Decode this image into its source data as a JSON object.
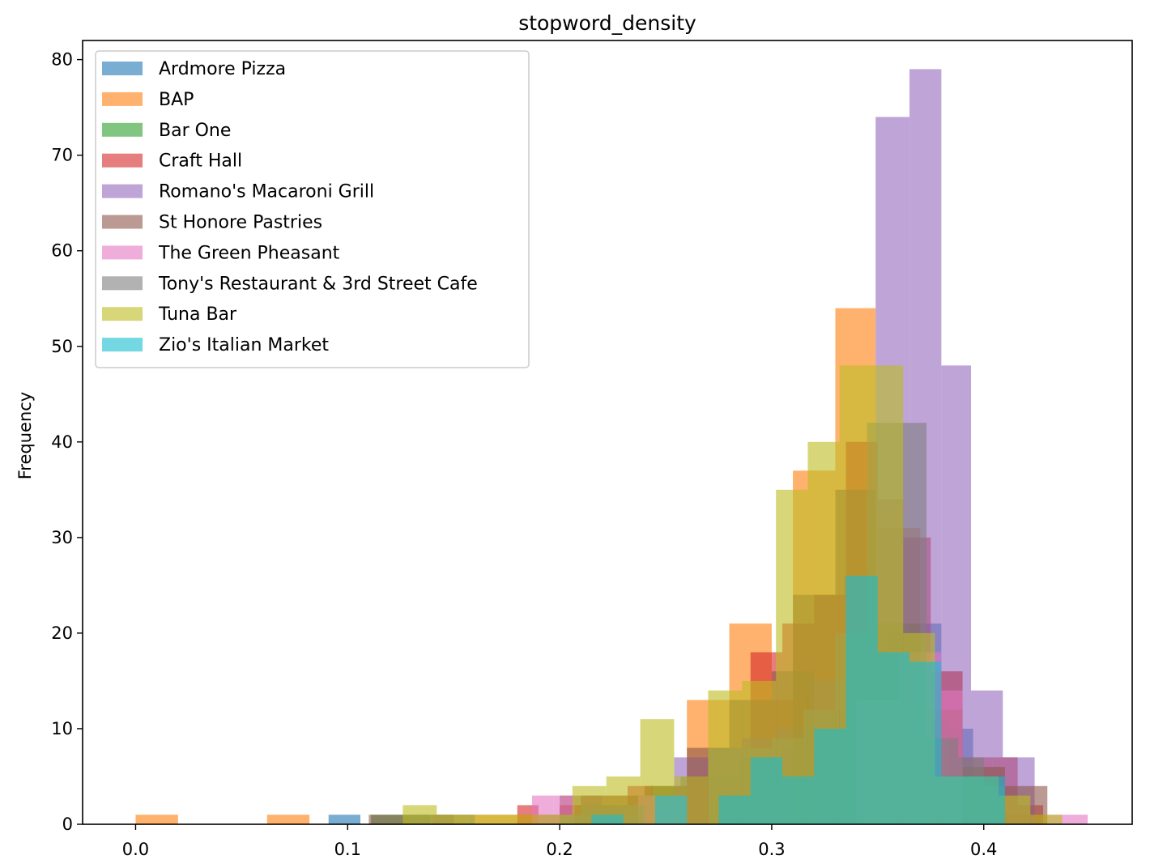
{
  "chart_data": {
    "type": "bar",
    "subtype": "overlaid histogram",
    "title": "stopword_density",
    "xlabel": "",
    "ylabel": "Frequency",
    "xlim": [
      -0.025,
      0.47
    ],
    "ylim": [
      0,
      82
    ],
    "xticks": [
      0.0,
      0.1,
      0.2,
      0.3,
      0.4
    ],
    "xtick_labels": [
      "0.0",
      "0.1",
      "0.2",
      "0.3",
      "0.4"
    ],
    "yticks": [
      0,
      10,
      20,
      30,
      40,
      50,
      60,
      70,
      80
    ],
    "ytick_labels": [
      "0",
      "10",
      "20",
      "30",
      "40",
      "50",
      "60",
      "70",
      "80"
    ],
    "grid": false,
    "legend_position": "upper-left",
    "bar_opacity": 0.6,
    "series": [
      {
        "name": "Ardmore Pizza",
        "color": "#1f77b4",
        "bins": [
          [
            0.091,
            0.106,
            1
          ],
          [
            0.275,
            0.29,
            3
          ],
          [
            0.29,
            0.305,
            6
          ],
          [
            0.305,
            0.32,
            8
          ],
          [
            0.32,
            0.335,
            12
          ],
          [
            0.335,
            0.35,
            15
          ],
          [
            0.35,
            0.365,
            17
          ],
          [
            0.365,
            0.38,
            21
          ],
          [
            0.38,
            0.395,
            10
          ],
          [
            0.395,
            0.41,
            5
          ]
        ]
      },
      {
        "name": "BAP",
        "color": "#ff7f0e",
        "bins": [
          [
            0.0,
            0.02,
            1
          ],
          [
            0.062,
            0.082,
            1
          ],
          [
            0.14,
            0.16,
            1
          ],
          [
            0.16,
            0.18,
            1
          ],
          [
            0.18,
            0.2,
            1
          ],
          [
            0.2,
            0.22,
            2
          ],
          [
            0.22,
            0.24,
            3
          ],
          [
            0.24,
            0.26,
            4
          ],
          [
            0.26,
            0.28,
            13
          ],
          [
            0.28,
            0.3,
            21
          ],
          [
            0.3,
            0.32,
            13
          ],
          [
            0.31,
            0.33,
            37
          ],
          [
            0.33,
            0.349,
            54
          ],
          [
            0.349,
            0.37,
            31
          ],
          [
            0.37,
            0.39,
            16
          ],
          [
            0.39,
            0.41,
            1
          ],
          [
            0.41,
            0.43,
            1
          ]
        ]
      },
      {
        "name": "Bar One",
        "color": "#2ca02c",
        "bins": [
          [
            0.111,
            0.125,
            1
          ],
          [
            0.125,
            0.139,
            1
          ],
          [
            0.243,
            0.257,
            4
          ],
          [
            0.257,
            0.271,
            5
          ],
          [
            0.271,
            0.285,
            5
          ],
          [
            0.285,
            0.299,
            7
          ],
          [
            0.299,
            0.313,
            6
          ],
          [
            0.313,
            0.327,
            8
          ],
          [
            0.327,
            0.341,
            12
          ],
          [
            0.341,
            0.355,
            18
          ],
          [
            0.355,
            0.369,
            20
          ],
          [
            0.369,
            0.383,
            11
          ],
          [
            0.383,
            0.397,
            5
          ],
          [
            0.397,
            0.411,
            1
          ]
        ]
      },
      {
        "name": "Craft Hall",
        "color": "#d62728",
        "bins": [
          [
            0.18,
            0.19,
            2
          ],
          [
            0.2,
            0.21,
            2
          ],
          [
            0.21,
            0.22,
            3
          ],
          [
            0.22,
            0.232,
            2
          ],
          [
            0.232,
            0.244,
            4
          ],
          [
            0.26,
            0.27,
            5
          ],
          [
            0.29,
            0.305,
            18
          ],
          [
            0.305,
            0.32,
            21
          ],
          [
            0.32,
            0.335,
            24
          ],
          [
            0.335,
            0.35,
            40
          ],
          [
            0.35,
            0.362,
            34
          ],
          [
            0.362,
            0.375,
            30
          ],
          [
            0.375,
            0.39,
            16
          ],
          [
            0.39,
            0.404,
            7
          ],
          [
            0.404,
            0.416,
            7
          ],
          [
            0.416,
            0.428,
            2
          ]
        ]
      },
      {
        "name": "Romano's Macaroni Grill",
        "color": "#9467bd",
        "bins": [
          [
            0.19,
            0.207,
            1
          ],
          [
            0.207,
            0.222,
            1
          ],
          [
            0.222,
            0.238,
            1
          ],
          [
            0.238,
            0.254,
            2
          ],
          [
            0.254,
            0.27,
            7
          ],
          [
            0.27,
            0.286,
            8
          ],
          [
            0.286,
            0.302,
            9
          ],
          [
            0.302,
            0.318,
            10
          ],
          [
            0.318,
            0.334,
            15
          ],
          [
            0.334,
            0.349,
            26
          ],
          [
            0.349,
            0.365,
            74
          ],
          [
            0.365,
            0.38,
            79
          ],
          [
            0.38,
            0.394,
            48
          ],
          [
            0.394,
            0.409,
            14
          ],
          [
            0.409,
            0.424,
            7
          ]
        ]
      },
      {
        "name": "St Honore Pastries",
        "color": "#8c564b",
        "bins": [
          [
            0.11,
            0.13,
            1
          ],
          [
            0.13,
            0.15,
            1
          ],
          [
            0.2,
            0.22,
            3
          ],
          [
            0.22,
            0.24,
            3
          ],
          [
            0.24,
            0.26,
            4
          ],
          [
            0.26,
            0.28,
            8
          ],
          [
            0.28,
            0.3,
            13
          ],
          [
            0.3,
            0.32,
            16
          ],
          [
            0.31,
            0.33,
            24
          ],
          [
            0.33,
            0.349,
            35
          ],
          [
            0.349,
            0.37,
            21
          ],
          [
            0.37,
            0.39,
            12
          ],
          [
            0.39,
            0.41,
            6
          ],
          [
            0.41,
            0.43,
            4
          ]
        ]
      },
      {
        "name": "The Green Pheasant",
        "color": "#e377c2",
        "bins": [
          [
            0.187,
            0.197,
            3
          ],
          [
            0.197,
            0.207,
            3
          ],
          [
            0.237,
            0.249,
            3
          ],
          [
            0.249,
            0.26,
            3
          ],
          [
            0.34,
            0.36,
            13
          ],
          [
            0.36,
            0.38,
            18
          ],
          [
            0.38,
            0.39,
            14
          ],
          [
            0.43,
            0.449,
            1
          ]
        ]
      },
      {
        "name": "Tony's Restaurant & 3rd Street Cafe",
        "color": "#7f7f7f",
        "bins": [
          [
            0.13,
            0.145,
            1
          ],
          [
            0.145,
            0.16,
            1
          ],
          [
            0.2,
            0.21,
            1
          ],
          [
            0.21,
            0.225,
            2
          ],
          [
            0.225,
            0.24,
            2
          ],
          [
            0.27,
            0.285,
            8
          ],
          [
            0.285,
            0.3,
            8
          ],
          [
            0.3,
            0.315,
            9
          ],
          [
            0.315,
            0.33,
            12
          ],
          [
            0.33,
            0.345,
            20
          ],
          [
            0.345,
            0.36,
            42
          ],
          [
            0.36,
            0.373,
            42
          ],
          [
            0.373,
            0.388,
            9
          ],
          [
            0.388,
            0.4,
            7
          ],
          [
            0.4,
            0.41,
            4
          ]
        ]
      },
      {
        "name": "Tuna Bar",
        "color": "#bcbd22",
        "bins": [
          [
            0.126,
            0.142,
            2
          ],
          [
            0.142,
            0.158,
            1
          ],
          [
            0.158,
            0.174,
            1
          ],
          [
            0.174,
            0.19,
            1
          ],
          [
            0.19,
            0.206,
            1
          ],
          [
            0.206,
            0.222,
            4
          ],
          [
            0.222,
            0.238,
            5
          ],
          [
            0.238,
            0.254,
            11
          ],
          [
            0.254,
            0.27,
            5
          ],
          [
            0.27,
            0.286,
            14
          ],
          [
            0.286,
            0.302,
            15
          ],
          [
            0.302,
            0.317,
            35
          ],
          [
            0.317,
            0.332,
            40
          ],
          [
            0.332,
            0.347,
            48
          ],
          [
            0.347,
            0.362,
            48
          ],
          [
            0.362,
            0.377,
            20
          ],
          [
            0.377,
            0.392,
            5
          ],
          [
            0.392,
            0.407,
            5
          ],
          [
            0.407,
            0.422,
            3
          ],
          [
            0.422,
            0.437,
            1
          ]
        ]
      },
      {
        "name": "Zio's Italian Market",
        "color": "#17becf",
        "bins": [
          [
            0.215,
            0.23,
            1
          ],
          [
            0.245,
            0.26,
            3
          ],
          [
            0.275,
            0.29,
            3
          ],
          [
            0.29,
            0.305,
            7
          ],
          [
            0.305,
            0.32,
            5
          ],
          [
            0.32,
            0.335,
            10
          ],
          [
            0.335,
            0.35,
            26
          ],
          [
            0.35,
            0.365,
            18
          ],
          [
            0.365,
            0.38,
            17
          ],
          [
            0.38,
            0.395,
            5
          ],
          [
            0.395,
            0.41,
            5
          ]
        ]
      }
    ]
  }
}
